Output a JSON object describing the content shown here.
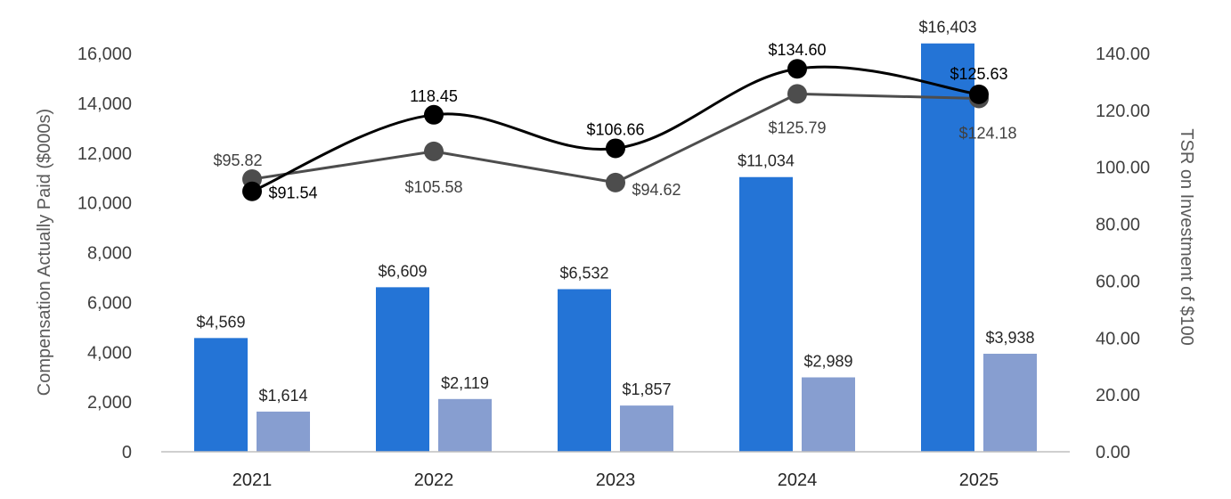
{
  "chart_data": {
    "type": "bar",
    "categories": [
      "2021",
      "2022",
      "2023",
      "2024",
      "2025"
    ],
    "ylabel": "Compensation Actually Paid ($000s)",
    "y2label": "TSR on Investment of $100",
    "ylim": [
      0,
      16000
    ],
    "yticks": [
      "0",
      "2,000",
      "4,000",
      "6,000",
      "8,000",
      "10,000",
      "12,000",
      "14,000",
      "16,000"
    ],
    "y2lim": [
      0,
      140
    ],
    "y2ticks": [
      "0.00",
      "20.00",
      "40.00",
      "60.00",
      "80.00",
      "100.00",
      "120.00",
      "140.00"
    ],
    "grid": false,
    "series": [
      {
        "type": "bar",
        "axis": "left",
        "color": "#2474d6",
        "values": [
          4569,
          6609,
          6532,
          11034,
          16403
        ],
        "labels": [
          "$4,569",
          "$6,609",
          "$6,532",
          "$11,034",
          "$16,403"
        ]
      },
      {
        "type": "bar",
        "axis": "left",
        "color": "#879ed0",
        "values": [
          1614,
          2119,
          1857,
          2989,
          3938
        ],
        "labels": [
          "$1,614",
          "$2,119",
          "$1,857",
          "$2,989",
          "$3,938"
        ]
      },
      {
        "type": "line",
        "axis": "right",
        "color": "#000000",
        "smooth": true,
        "values": [
          91.54,
          118.45,
          106.66,
          134.6,
          125.63
        ],
        "labels": [
          "$91.54",
          "118.45",
          "$106.66",
          "$134.60",
          "$125.63"
        ]
      },
      {
        "type": "line",
        "axis": "right",
        "color": "#4d4d4d",
        "smooth": false,
        "values": [
          95.82,
          105.58,
          94.62,
          125.79,
          124.18
        ],
        "labels": [
          "$95.82",
          "$105.58",
          "$94.62",
          "$125.79",
          "$124.18"
        ]
      }
    ]
  }
}
